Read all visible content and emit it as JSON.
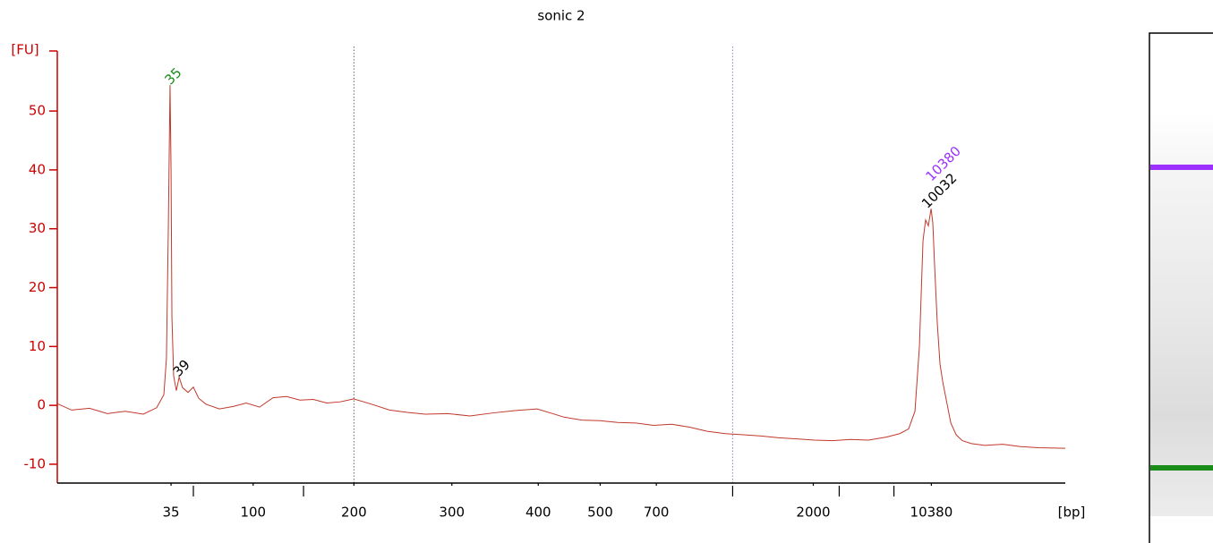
{
  "chart_data": {
    "type": "line",
    "title": "sonic 2",
    "y_label": "[FU]",
    "x_label": "[bp]",
    "xlim": [
      43,
      113
    ],
    "ylim": [
      -13.2,
      60.2
    ],
    "yticks": [
      -10,
      0,
      10,
      20,
      30,
      40,
      50
    ],
    "xticks": [
      {
        "value": 50.9,
        "label": "35"
      },
      {
        "value": 52.45,
        "label": null
      },
      {
        "value": 56.6,
        "label": "100"
      },
      {
        "value": 60.1,
        "label": null
      },
      {
        "value": 63.6,
        "label": "200"
      },
      {
        "value": 70.4,
        "label": "300"
      },
      {
        "value": 76.4,
        "label": "400"
      },
      {
        "value": 80.7,
        "label": "500"
      },
      {
        "value": 84.6,
        "label": "700"
      },
      {
        "value": 89.9,
        "label": null
      },
      {
        "value": 95.5,
        "label": "2000"
      },
      {
        "value": 97.3,
        "label": null
      },
      {
        "value": 101.1,
        "label": null
      },
      {
        "value": 103.7,
        "label": "10380"
      }
    ],
    "vlines": [
      63.6,
      89.9
    ],
    "axis_color": "#cc0000",
    "series": [
      {
        "color": "#c0392b",
        "x": [
          43.0,
          43.99,
          45.24,
          46.48,
          47.72,
          48.97,
          49.9,
          50.4,
          50.58,
          50.71,
          50.83,
          50.9,
          50.96,
          51.08,
          51.27,
          51.46,
          51.7,
          52.08,
          52.45,
          52.82,
          53.32,
          54.25,
          55.19,
          56.12,
          57.05,
          57.98,
          58.92,
          59.85,
          60.78,
          61.71,
          62.65,
          63.58,
          64.82,
          66.07,
          67.31,
          68.55,
          70.11,
          71.66,
          73.21,
          74.77,
          76.32,
          77.26,
          78.19,
          79.43,
          80.68,
          81.92,
          83.17,
          84.41,
          85.66,
          86.9,
          88.14,
          89.38,
          90.63,
          91.87,
          93.11,
          94.35,
          95.6,
          96.84,
          98.08,
          99.32,
          100.57,
          101.5,
          102.12,
          102.56,
          102.87,
          103.12,
          103.3,
          103.49,
          103.68,
          103.8,
          103.92,
          104.11,
          104.3,
          104.49,
          104.73,
          105.05,
          105.42,
          105.85,
          106.48,
          107.41,
          108.65,
          109.9,
          111.14,
          113.0
        ],
        "values": [
          0.3,
          -0.8,
          -0.5,
          -1.4,
          -1.0,
          -1.5,
          -0.4,
          1.8,
          8,
          30,
          54.4,
          40,
          15,
          5,
          2.5,
          4.8,
          3.0,
          2.2,
          3.1,
          1.2,
          0.2,
          -0.6,
          -0.2,
          0.4,
          -0.3,
          1.3,
          1.5,
          0.9,
          1.0,
          0.4,
          0.6,
          1.1,
          0.2,
          -0.8,
          -1.2,
          -1.5,
          -1.4,
          -1.8,
          -1.3,
          -0.9,
          -0.6,
          -1.3,
          -2.0,
          -2.5,
          -2.6,
          -2.9,
          -3.0,
          -3.4,
          -3.2,
          -3.7,
          -4.4,
          -4.8,
          -5.0,
          -5.2,
          -5.5,
          -5.7,
          -5.9,
          -6.0,
          -5.8,
          -5.9,
          -5.4,
          -4.8,
          -4.0,
          -1.0,
          10,
          28,
          31.5,
          30.5,
          33.4,
          31,
          24,
          14,
          7,
          4,
          1,
          -3,
          -5,
          -6,
          -6.5,
          -6.8,
          -6.6,
          -7.0,
          -7.2,
          -7.3
        ]
      }
    ],
    "annotations": [
      {
        "text": "35",
        "x": 50.83,
        "y": 54.4,
        "color": "#1a8c1a"
      },
      {
        "text": "39",
        "x": 51.4,
        "y": 4.8,
        "color": "#000000"
      },
      {
        "text": "10380",
        "x": 103.68,
        "y": 38,
        "color": "#9b30ff"
      },
      {
        "text": "10032",
        "x": 103.4,
        "y": 33.4,
        "color": "#000000"
      }
    ]
  }
}
